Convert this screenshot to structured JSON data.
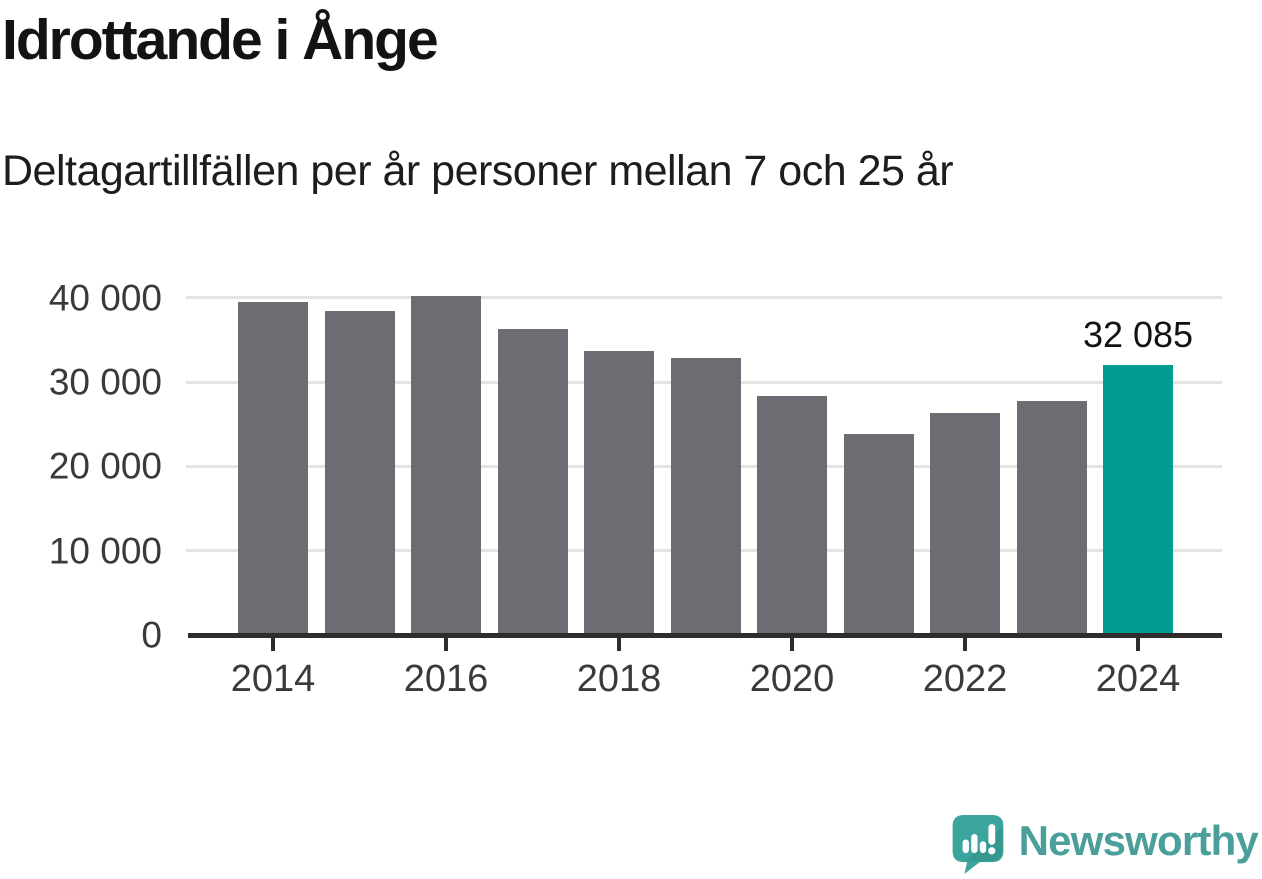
{
  "header": {
    "title": "Idrottande i Ånge",
    "subtitle": "Deltagartillfällen per år personer mellan 7 och 25 år"
  },
  "chart_data": {
    "type": "bar",
    "title": "Idrottande i Ånge",
    "subtitle": "Deltagartillfällen per år personer mellan 7 och 25 år",
    "categories": [
      "2014",
      "2015",
      "2016",
      "2017",
      "2018",
      "2019",
      "2020",
      "2021",
      "2022",
      "2023",
      "2024"
    ],
    "values": [
      39500,
      38400,
      40200,
      36300,
      33700,
      32800,
      28400,
      23800,
      26300,
      27700,
      32085
    ],
    "highlight_index": 10,
    "highlight_value": 32085,
    "highlight_value_label": "32 085",
    "bar_color": "#6e6c73",
    "highlight_color": "#009b93",
    "y_axis": {
      "ticks": [
        0,
        10000,
        20000,
        30000,
        40000
      ],
      "tick_labels": [
        "0",
        "10 000",
        "20 000",
        "30 000",
        "40 000"
      ],
      "range": [
        0,
        42000
      ],
      "gridlines": true
    },
    "x_axis": {
      "tick_labels": [
        "2014",
        "2016",
        "2018",
        "2020",
        "2022",
        "2024"
      ]
    },
    "legend": null
  },
  "branding": {
    "wordmark": "Newsworthy",
    "icon": "newsworthy-speech-bubble-bar-chart-icon",
    "mark_color": "#3ca49c",
    "wordmark_color": "#4a9f9a"
  }
}
